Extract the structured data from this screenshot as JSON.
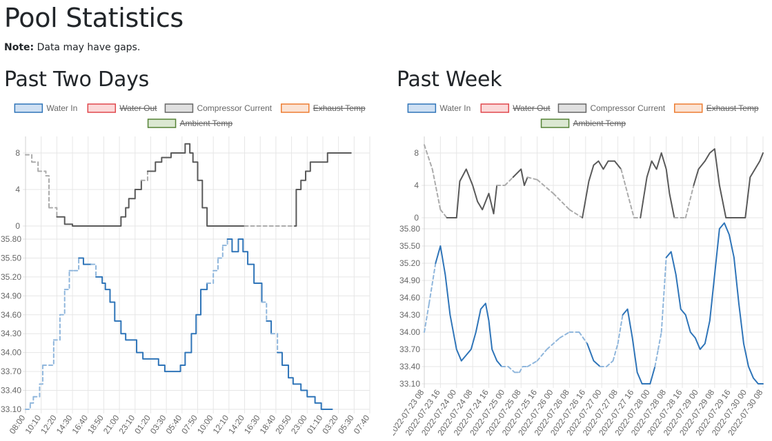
{
  "page": {
    "title": "Pool Statistics",
    "note_label": "Note:",
    "note_text": "Data may have gaps."
  },
  "sections": {
    "two_days": {
      "title": "Past Two Days"
    },
    "week": {
      "title": "Past Week"
    }
  },
  "legend": [
    {
      "label": "Water In",
      "color": "#2e74b8",
      "fill": "#cfe0f3",
      "hidden": false
    },
    {
      "label": "Water Out",
      "color": "#e0474c",
      "fill": "#fbd9d9",
      "hidden": true
    },
    {
      "label": "Compressor Current",
      "color": "#666666",
      "fill": "#e0e0e0",
      "hidden": false
    },
    {
      "label": "Exhaust Temp",
      "color": "#ed7d31",
      "fill": "#fbe3d4",
      "hidden": true
    },
    {
      "label": "Ambient Temp",
      "color": "#548235",
      "fill": "#dbe8d2",
      "hidden": true
    }
  ],
  "chart_data": [
    {
      "type": "line",
      "title": "Past Two Days",
      "x_ticks": [
        "08:00",
        "10:10",
        "12:20",
        "14:30",
        "16:40",
        "18:50",
        "21:00",
        "23:10",
        "01:20",
        "03:30",
        "05:40",
        "07:50",
        "10:00",
        "12:10",
        "14:20",
        "16:30",
        "18:40",
        "20:50",
        "23:00",
        "01:10",
        "03:20",
        "05:30",
        "07:40"
      ],
      "compressor": {
        "name": "Compressor Current",
        "yticks": [
          "8",
          "4",
          "0"
        ],
        "ylim": [
          0,
          8
        ],
        "stepped": true,
        "points": [
          [
            0,
            7.8
          ],
          [
            0.4,
            7
          ],
          [
            0.8,
            6
          ],
          [
            1.3,
            5.5
          ],
          [
            1.5,
            2
          ],
          [
            2,
            1
          ],
          [
            2.5,
            0.2
          ],
          [
            3,
            0
          ],
          [
            6,
            0
          ],
          [
            6.1,
            1
          ],
          [
            6.4,
            2
          ],
          [
            6.6,
            3
          ],
          [
            7,
            4
          ],
          [
            7.4,
            5
          ],
          [
            7.8,
            6
          ],
          [
            8.3,
            7
          ],
          [
            8.7,
            7.5
          ],
          [
            9.3,
            8
          ],
          [
            10,
            8
          ],
          [
            10.2,
            9
          ],
          [
            10.5,
            8
          ],
          [
            10.7,
            7
          ],
          [
            11,
            5
          ],
          [
            11.3,
            2
          ],
          [
            11.6,
            0
          ],
          [
            14,
            0
          ],
          [
            14.8,
            0
          ],
          [
            17.2,
            0
          ],
          [
            17.3,
            4
          ],
          [
            17.6,
            5
          ],
          [
            17.9,
            6
          ],
          [
            18.2,
            7
          ],
          [
            19.1,
            7
          ],
          [
            19.3,
            8
          ],
          [
            20.8,
            8
          ]
        ],
        "dashed_ranges": [
          [
            0,
            2.2
          ],
          [
            7.4,
            7.9
          ],
          [
            13.8,
            14.5
          ],
          [
            14.5,
            17.1
          ]
        ]
      },
      "water_in": {
        "name": "Water In",
        "yticks": [
          "35.80",
          "35.50",
          "35.20",
          "34.90",
          "34.60",
          "34.30",
          "34.00",
          "33.70",
          "33.40",
          "33.10"
        ],
        "ylim": [
          33.1,
          35.8
        ],
        "stepped": true,
        "points": [
          [
            0,
            33.1
          ],
          [
            0.3,
            33.2
          ],
          [
            0.5,
            33.3
          ],
          [
            0.9,
            33.5
          ],
          [
            1.1,
            33.8
          ],
          [
            1.5,
            33.8
          ],
          [
            1.8,
            34.2
          ],
          [
            2.2,
            34.6
          ],
          [
            2.5,
            35.0
          ],
          [
            2.8,
            35.3
          ],
          [
            3.1,
            35.3
          ],
          [
            3.4,
            35.5
          ],
          [
            3.7,
            35.4
          ],
          [
            4.2,
            35.4
          ],
          [
            4.5,
            35.2
          ],
          [
            4.9,
            35.1
          ],
          [
            5.1,
            35.0
          ],
          [
            5.4,
            34.8
          ],
          [
            5.7,
            34.5
          ],
          [
            6.1,
            34.3
          ],
          [
            6.4,
            34.2
          ],
          [
            6.9,
            34.2
          ],
          [
            7.1,
            34.0
          ],
          [
            7.5,
            33.9
          ],
          [
            8.1,
            33.9
          ],
          [
            8.5,
            33.8
          ],
          [
            8.9,
            33.7
          ],
          [
            9.6,
            33.7
          ],
          [
            9.9,
            33.8
          ],
          [
            10.2,
            34.0
          ],
          [
            10.6,
            34.3
          ],
          [
            10.9,
            34.6
          ],
          [
            11.2,
            35.0
          ],
          [
            11.6,
            35.1
          ],
          [
            12,
            35.3
          ],
          [
            12.3,
            35.5
          ],
          [
            12.6,
            35.7
          ],
          [
            12.9,
            35.8
          ],
          [
            13.2,
            35.6
          ],
          [
            13.6,
            35.8
          ],
          [
            13.9,
            35.6
          ],
          [
            14.2,
            35.4
          ],
          [
            14.6,
            35.1
          ],
          [
            15.1,
            34.8
          ],
          [
            15.4,
            34.5
          ],
          [
            15.7,
            34.3
          ],
          [
            16.1,
            34.0
          ],
          [
            16.4,
            33.8
          ],
          [
            16.8,
            33.6
          ],
          [
            17.1,
            33.5
          ],
          [
            17.6,
            33.4
          ],
          [
            18,
            33.3
          ],
          [
            18.5,
            33.2
          ],
          [
            18.9,
            33.1
          ],
          [
            19.6,
            33.1
          ]
        ],
        "dashed_ranges": [
          [
            0,
            1.3
          ],
          [
            1.5,
            3.3
          ],
          [
            4.3,
            4.6
          ],
          [
            11.8,
            12.3
          ],
          [
            12.4,
            12.8
          ],
          [
            15.2,
            15.5
          ],
          [
            15.8,
            16.1
          ]
        ]
      }
    },
    {
      "type": "line",
      "title": "Past Week",
      "x_ticks": [
        "2022-07-23 08",
        "2022-07-23 16",
        "2022-07-24 00",
        "2022-07-24 08",
        "2022-07-24 16",
        "2022-07-25 00",
        "2022-07-25 08",
        "2022-07-25 16",
        "2022-07-26 00",
        "2022-07-26 08",
        "2022-07-26 16",
        "2022-07-27 00",
        "2022-07-27 08",
        "2022-07-27 16",
        "2022-07-28 00",
        "2022-07-28 08",
        "2022-07-28 16",
        "2022-07-29 00",
        "2022-07-29 08",
        "2022-07-29 16",
        "2022-07-30 00",
        "2022-07-30 08"
      ],
      "compressor": {
        "name": "Compressor Current",
        "yticks": [
          "8",
          "4",
          "0"
        ],
        "ylim": [
          0,
          8
        ],
        "stepped": false,
        "points": [
          [
            0,
            9
          ],
          [
            0.5,
            6
          ],
          [
            1,
            1
          ],
          [
            1.4,
            0
          ],
          [
            2,
            0
          ],
          [
            2.2,
            4.5
          ],
          [
            2.6,
            6
          ],
          [
            3,
            4
          ],
          [
            3.3,
            2
          ],
          [
            3.6,
            1
          ],
          [
            3.8,
            2
          ],
          [
            4,
            3
          ],
          [
            4.3,
            0.5
          ],
          [
            4.5,
            4
          ],
          [
            5,
            4
          ],
          [
            5.5,
            5
          ],
          [
            6,
            6
          ],
          [
            6.2,
            4
          ],
          [
            6.4,
            5
          ],
          [
            7,
            4.7
          ],
          [
            8,
            3
          ],
          [
            9,
            1
          ],
          [
            9.8,
            0
          ],
          [
            10.2,
            4.5
          ],
          [
            10.5,
            6.5
          ],
          [
            10.8,
            7
          ],
          [
            11.1,
            6
          ],
          [
            11.4,
            7
          ],
          [
            11.8,
            7
          ],
          [
            12.2,
            6
          ],
          [
            12.6,
            3
          ],
          [
            13,
            0
          ],
          [
            13.4,
            0
          ],
          [
            13.8,
            5
          ],
          [
            14.1,
            7
          ],
          [
            14.4,
            6
          ],
          [
            14.7,
            8
          ],
          [
            15,
            6
          ],
          [
            15.2,
            3
          ],
          [
            15.5,
            0
          ],
          [
            16.2,
            0
          ],
          [
            16.7,
            4
          ],
          [
            17,
            6
          ],
          [
            17.4,
            7
          ],
          [
            17.7,
            8
          ],
          [
            18,
            8.5
          ],
          [
            18.3,
            4
          ],
          [
            18.7,
            0
          ],
          [
            19.9,
            0
          ],
          [
            20.2,
            5
          ],
          [
            20.5,
            6
          ],
          [
            20.8,
            7
          ],
          [
            21,
            8
          ]
        ],
        "dashed_ranges": [
          [
            0,
            1.4
          ],
          [
            4.6,
            5.7
          ],
          [
            6.7,
            9.9
          ],
          [
            12.2,
            13.6
          ],
          [
            15.5,
            16.5
          ]
        ]
      },
      "water_in": {
        "name": "Water In",
        "yticks": [
          "35.80",
          "35.50",
          "35.20",
          "34.90",
          "34.60",
          "34.30",
          "34.00",
          "33.70",
          "33.40",
          "33.10"
        ],
        "ylim": [
          33.1,
          35.8
        ],
        "stepped": false,
        "points": [
          [
            0,
            34.0
          ],
          [
            0.3,
            34.5
          ],
          [
            0.7,
            35.2
          ],
          [
            1,
            35.5
          ],
          [
            1.3,
            35.0
          ],
          [
            1.6,
            34.3
          ],
          [
            2,
            33.7
          ],
          [
            2.3,
            33.5
          ],
          [
            2.6,
            33.6
          ],
          [
            2.9,
            33.7
          ],
          [
            3.2,
            34.0
          ],
          [
            3.5,
            34.4
          ],
          [
            3.8,
            34.5
          ],
          [
            4,
            34.2
          ],
          [
            4.2,
            33.7
          ],
          [
            4.5,
            33.5
          ],
          [
            4.8,
            33.4
          ],
          [
            5.2,
            33.4
          ],
          [
            5.6,
            33.3
          ],
          [
            5.9,
            33.3
          ],
          [
            6.1,
            33.4
          ],
          [
            6.4,
            33.4
          ],
          [
            7,
            33.5
          ],
          [
            7.6,
            33.7
          ],
          [
            8.4,
            33.9
          ],
          [
            9,
            34.0
          ],
          [
            9.6,
            34.0
          ],
          [
            10.1,
            33.8
          ],
          [
            10.5,
            33.5
          ],
          [
            10.9,
            33.4
          ],
          [
            11.3,
            33.4
          ],
          [
            11.7,
            33.5
          ],
          [
            12,
            33.8
          ],
          [
            12.3,
            34.3
          ],
          [
            12.6,
            34.4
          ],
          [
            12.9,
            33.9
          ],
          [
            13.2,
            33.3
          ],
          [
            13.5,
            33.1
          ],
          [
            14,
            33.1
          ],
          [
            14.3,
            33.4
          ],
          [
            14.5,
            33.7
          ],
          [
            14.7,
            34.0
          ],
          [
            15,
            35.3
          ],
          [
            15.3,
            35.4
          ],
          [
            15.6,
            35.0
          ],
          [
            15.9,
            34.4
          ],
          [
            16.2,
            34.3
          ],
          [
            16.5,
            34.0
          ],
          [
            16.8,
            33.9
          ],
          [
            17.1,
            33.7
          ],
          [
            17.4,
            33.8
          ],
          [
            17.7,
            34.2
          ],
          [
            18,
            35.0
          ],
          [
            18.3,
            35.8
          ],
          [
            18.6,
            35.9
          ],
          [
            18.9,
            35.7
          ],
          [
            19.2,
            35.3
          ],
          [
            19.5,
            34.5
          ],
          [
            19.8,
            33.8
          ],
          [
            20.1,
            33.4
          ],
          [
            20.4,
            33.2
          ],
          [
            20.7,
            33.1
          ],
          [
            21,
            33.1
          ]
        ],
        "dashed_ranges": [
          [
            0,
            0.8
          ],
          [
            5.0,
            10.1
          ],
          [
            11.0,
            12.2
          ],
          [
            14.4,
            15.0
          ]
        ]
      }
    }
  ]
}
